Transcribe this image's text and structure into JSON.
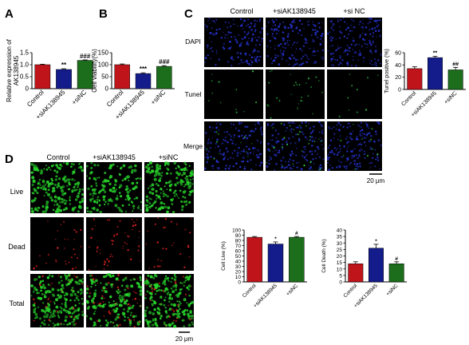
{
  "panel_letters": {
    "a": "A",
    "b": "B",
    "c": "C",
    "d": "D"
  },
  "colors": {
    "control": "#c0141b",
    "si_ak": "#141c8c",
    "si_nc": "#1c6e1c",
    "dapi": "#2530c8",
    "tunel": "#2fd24a",
    "live": "#27d12a",
    "dead": "#e02020",
    "black": "#000000"
  },
  "panel_c": {
    "columns": [
      "Control",
      "+siAK138945",
      "+si NC"
    ],
    "rows": [
      "DAPI",
      "Tunel",
      "Merge"
    ],
    "scale_bar": "20 μm"
  },
  "panel_d": {
    "columns": [
      "Control",
      "+siAK138945",
      "+siNC"
    ],
    "rows": [
      "Live",
      "Dead",
      "Total"
    ],
    "scale_bar": "20 μm"
  },
  "chart_data": [
    {
      "id": "A",
      "type": "bar",
      "categories": [
        "Control",
        "+siAK138945",
        "+siNC"
      ],
      "values": [
        1.0,
        0.8,
        1.18
      ],
      "errors": [
        0.02,
        0.03,
        0.02
      ],
      "annotations": [
        "",
        "**",
        "###"
      ],
      "ylabel": "Relative expression of AK138945",
      "ylim": [
        0,
        1.5
      ],
      "yticks": [
        "0",
        "0.5",
        "1.0",
        "1.5"
      ]
    },
    {
      "id": "B",
      "type": "bar",
      "categories": [
        "Control",
        "+siAK138945",
        "+siNC"
      ],
      "values": [
        100,
        63,
        93
      ],
      "errors": [
        3,
        3,
        3
      ],
      "annotations": [
        "",
        "***",
        "###"
      ],
      "ylabel": "Cell viability(%)",
      "ylim": [
        0,
        150
      ],
      "yticks": [
        "0",
        "50",
        "100",
        "150"
      ]
    },
    {
      "id": "C",
      "type": "bar",
      "categories": [
        "Control",
        "+siAK138945",
        "+siNC"
      ],
      "values": [
        34,
        52,
        32
      ],
      "errors": [
        3,
        2,
        4
      ],
      "annotations": [
        "",
        "**",
        "##"
      ],
      "ylabel": "Tunel positive (%)",
      "ylim": [
        0,
        60
      ],
      "yticks": [
        "0",
        "20",
        "40",
        "60"
      ]
    },
    {
      "id": "Dlive",
      "type": "bar",
      "categories": [
        "Control",
        "+siAK138945",
        "+siNC"
      ],
      "values": [
        86,
        73,
        86
      ],
      "errors": [
        1.5,
        4,
        1.5
      ],
      "annotations": [
        "",
        "*",
        "#"
      ],
      "ylabel": "Cell Live (%)",
      "ylim": [
        0,
        100
      ],
      "yticks": [
        "0",
        "10",
        "20",
        "30",
        "40",
        "50",
        "60",
        "70",
        "80",
        "90",
        "100"
      ]
    },
    {
      "id": "Ddeath",
      "type": "bar",
      "categories": [
        "Control",
        "+siAK138945",
        "+siNC"
      ],
      "values": [
        14,
        26,
        14
      ],
      "errors": [
        1.5,
        3,
        1.5
      ],
      "annotations": [
        "",
        "*",
        "#"
      ],
      "ylabel": "Cell Death (%)",
      "ylim": [
        0,
        40
      ],
      "yticks": [
        "0",
        "5",
        "10",
        "15",
        "20",
        "25",
        "30",
        "35",
        "40"
      ]
    }
  ]
}
